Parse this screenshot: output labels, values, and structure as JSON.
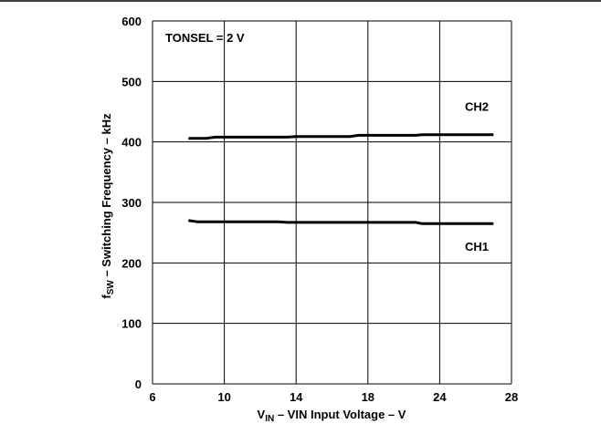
{
  "chart_data": {
    "type": "line",
    "annotation": "TONSEL = 2 V",
    "xlabel": {
      "main": "V",
      "sub": "IN",
      "rest": " – VIN Input Voltage – V"
    },
    "ylabel": {
      "main": "f",
      "sub": "SW",
      "rest": " – Switching Frequency – kHz"
    },
    "x_ticks": [
      "6",
      "10",
      "14",
      "18",
      "24",
      "28"
    ],
    "y_ticks": [
      "0",
      "100",
      "200",
      "300",
      "400",
      "500",
      "600"
    ],
    "ylim": [
      0,
      600
    ],
    "grid": true,
    "series": [
      {
        "name": "CH2",
        "x": [
          8,
          9,
          9.5,
          10,
          12,
          13.5,
          14,
          17,
          17.5,
          22,
          22.5,
          24,
          27
        ],
        "y": [
          406,
          406,
          408,
          408,
          408,
          408,
          409,
          409,
          411,
          411,
          412,
          412,
          412
        ]
      },
      {
        "name": "CH1",
        "x": [
          8,
          8.5,
          12,
          13,
          13.5,
          20,
          22,
          22.5,
          24,
          27
        ],
        "y": [
          270,
          268,
          268,
          268,
          267,
          267,
          267,
          265,
          265,
          265
        ]
      }
    ]
  }
}
